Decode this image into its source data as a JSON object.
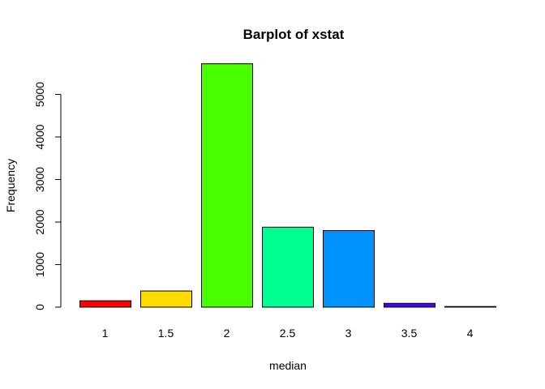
{
  "chart_data": {
    "type": "bar",
    "title": "Barplot of xstat",
    "xlabel": "median",
    "ylabel": "Frequency",
    "categories": [
      "1",
      "1.5",
      "2",
      "2.5",
      "3",
      "3.5",
      "4"
    ],
    "values": [
      150,
      380,
      5720,
      1880,
      1800,
      90,
      15
    ],
    "colors": [
      "#FF0000",
      "#FFDB00",
      "#49FF00",
      "#00FF92",
      "#0092FF",
      "#4900FF",
      "#FF00DB"
    ],
    "ylim": [
      0,
      6000
    ],
    "yticks": [
      0,
      1000,
      2000,
      3000,
      4000,
      5000
    ],
    "ytick_labels": [
      "0",
      "1000",
      "2000",
      "3000",
      "4000",
      "5000"
    ],
    "grid": false,
    "legend": "none"
  }
}
